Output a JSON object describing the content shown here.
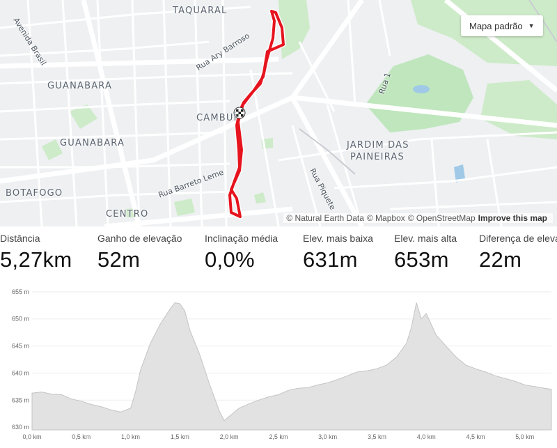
{
  "map": {
    "style_button": {
      "label": "Mapa padrão",
      "icon": "caret-down-icon"
    },
    "neighborhoods": [
      "TAQUARAL",
      "GUANABARA",
      "GUANABARA",
      "CAMBUÍ",
      "JARDIM DAS",
      "PAINEIRAS",
      "BOTAFOGO",
      "CENTRO"
    ],
    "streets": [
      "Avenida Brasil",
      "Rua Ary Barroso",
      "Rua 1",
      "Rua Barreto Leme",
      "Rua Piquete"
    ],
    "attribution": {
      "natural_earth": "© Natural Earth Data",
      "mapbox": "© Mapbox",
      "osm": "© OpenStreetMap",
      "improve": "Improve this map"
    },
    "route_color": "#e6141e",
    "finish_marker": "checkered-flag-icon"
  },
  "stats": [
    {
      "label": "Distância",
      "value": "5,27km"
    },
    {
      "label": "Ganho de elevação",
      "value": "52m"
    },
    {
      "label": "Inclinação média",
      "value": "0,0%"
    },
    {
      "label": "Elev. mais baixa",
      "value": "631m"
    },
    {
      "label": "Elev. mais alta",
      "value": "653m"
    },
    {
      "label": "Diferença de elevação",
      "value": "22m"
    }
  ],
  "chart_data": {
    "type": "area",
    "xlabel": "",
    "ylabel": "",
    "xlim": [
      0,
      5.27
    ],
    "ylim": [
      629.5,
      655.5
    ],
    "grid": true,
    "x_ticks": [
      "0,0 km",
      "0,5 km",
      "1,0 km",
      "1,5 km",
      "2,0 km",
      "2,5 km",
      "3,0 km",
      "3,5 km",
      "4,0 km",
      "4,5 km",
      "5,0 km"
    ],
    "y_ticks": [
      "630 m",
      "635 m",
      "640 m",
      "645 m",
      "650 m",
      "655 m"
    ],
    "x": [
      0.0,
      0.1,
      0.2,
      0.3,
      0.4,
      0.5,
      0.6,
      0.7,
      0.8,
      0.9,
      1.0,
      1.05,
      1.1,
      1.2,
      1.3,
      1.4,
      1.45,
      1.5,
      1.55,
      1.6,
      1.7,
      1.8,
      1.9,
      1.95,
      2.0,
      2.1,
      2.2,
      2.3,
      2.4,
      2.5,
      2.6,
      2.7,
      2.8,
      2.9,
      3.0,
      3.1,
      3.2,
      3.3,
      3.4,
      3.5,
      3.6,
      3.7,
      3.8,
      3.85,
      3.9,
      3.95,
      4.0,
      4.05,
      4.1,
      4.2,
      4.3,
      4.4,
      4.5,
      4.6,
      4.7,
      4.8,
      4.9,
      5.0,
      5.1,
      5.2,
      5.27
    ],
    "values": [
      636.3,
      636.5,
      636.1,
      636.0,
      635.2,
      634.8,
      634.2,
      633.8,
      633.2,
      632.8,
      633.5,
      636.5,
      640.5,
      645.5,
      649.0,
      651.8,
      653.0,
      652.8,
      651.5,
      648.0,
      643.5,
      638.0,
      633.0,
      631.2,
      632.0,
      633.5,
      634.3,
      635.0,
      635.6,
      636.0,
      636.8,
      637.2,
      637.3,
      637.8,
      638.2,
      638.8,
      639.5,
      640.2,
      640.4,
      640.8,
      641.5,
      643.0,
      645.5,
      648.5,
      653.0,
      650.0,
      651.0,
      649.0,
      647.0,
      645.0,
      643.0,
      641.5,
      640.8,
      640.2,
      639.5,
      639.0,
      638.5,
      637.8,
      637.5,
      637.2,
      637.0
    ]
  }
}
